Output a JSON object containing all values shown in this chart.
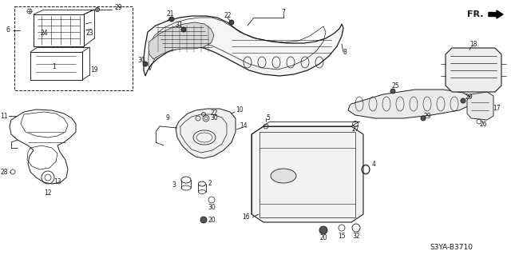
{
  "background_color": "#ffffff",
  "watermark": "S3YA-B3710",
  "fr_label": "FR.",
  "figsize": [
    6.4,
    3.19
  ],
  "dpi": 100,
  "line_color": "#1a1a1a",
  "text_color": "#1a1a1a",
  "label_fontsize": 5.5,
  "watermark_fontsize": 6.5,
  "fr_fontsize": 8
}
